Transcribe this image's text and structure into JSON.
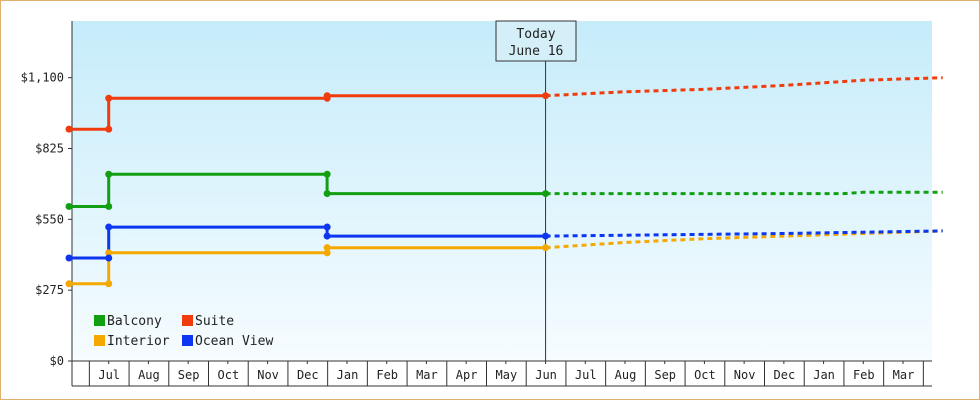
{
  "chart_data": {
    "type": "line",
    "ylim": [
      0,
      1320
    ],
    "y_ticks": [
      0,
      275,
      550,
      825,
      1100
    ],
    "y_tick_labels": [
      "$0",
      "$275",
      "$550",
      "$825",
      "$1,100"
    ],
    "x_tick_labels": [
      "Jul",
      "Aug",
      "Sep",
      "Oct",
      "Nov",
      "Dec",
      "Jan",
      "Feb",
      "Mar",
      "Apr",
      "May",
      "Jun",
      "Jul",
      "Aug",
      "Sep",
      "Oct",
      "Nov",
      "Dec",
      "Jan",
      "Feb",
      "Mar"
    ],
    "x_range_months": [
      0,
      22
    ],
    "today": {
      "line1": "Today",
      "line2": "June 16",
      "month": 12
    },
    "legend_placement": "bottom-left",
    "grid": false,
    "series": [
      {
        "name": "Balcony",
        "color": "#12a012",
        "actual": [
          [
            0,
            600
          ],
          [
            1,
            600
          ],
          [
            1,
            725
          ],
          [
            6.5,
            725
          ],
          [
            6.5,
            650
          ],
          [
            12,
            650
          ]
        ],
        "forecast": [
          [
            12,
            650
          ],
          [
            15,
            650
          ],
          [
            17,
            650
          ],
          [
            19.5,
            650
          ],
          [
            20,
            655
          ],
          [
            22,
            655
          ]
        ]
      },
      {
        "name": "Suite",
        "color": "#f03c0c",
        "actual": [
          [
            0,
            900
          ],
          [
            1,
            900
          ],
          [
            1,
            1020
          ],
          [
            6.5,
            1020
          ],
          [
            6.5,
            1030
          ],
          [
            12,
            1030
          ]
        ],
        "forecast": [
          [
            12,
            1030
          ],
          [
            14,
            1045
          ],
          [
            16,
            1055
          ],
          [
            18,
            1070
          ],
          [
            20,
            1090
          ],
          [
            22,
            1100
          ]
        ]
      },
      {
        "name": "Interior",
        "color": "#f5a800",
        "actual": [
          [
            0,
            300
          ],
          [
            1,
            300
          ],
          [
            1,
            420
          ],
          [
            6.5,
            420
          ],
          [
            6.5,
            440
          ],
          [
            12,
            440
          ]
        ],
        "forecast": [
          [
            12,
            440
          ],
          [
            14,
            460
          ],
          [
            16,
            475
          ],
          [
            18,
            485
          ],
          [
            20,
            495
          ],
          [
            22,
            505
          ]
        ]
      },
      {
        "name": "Ocean View",
        "color": "#0c36f0",
        "actual": [
          [
            0,
            400
          ],
          [
            1,
            400
          ],
          [
            1,
            520
          ],
          [
            6.5,
            520
          ],
          [
            6.5,
            485
          ],
          [
            12,
            485
          ]
        ],
        "forecast": [
          [
            12,
            485
          ],
          [
            15,
            490
          ],
          [
            18,
            495
          ],
          [
            20,
            500
          ],
          [
            22,
            505
          ]
        ]
      }
    ],
    "markers": {
      "Balcony": [
        [
          0,
          600
        ],
        [
          1,
          600
        ],
        [
          1,
          725
        ],
        [
          6.5,
          725
        ],
        [
          6.5,
          650
        ],
        [
          12,
          650
        ]
      ],
      "Suite": [
        [
          0,
          900
        ],
        [
          1,
          900
        ],
        [
          1,
          1020
        ],
        [
          6.5,
          1020
        ],
        [
          6.5,
          1030
        ],
        [
          12,
          1030
        ]
      ],
      "Interior": [
        [
          0,
          300
        ],
        [
          1,
          300
        ],
        [
          1,
          420
        ],
        [
          6.5,
          420
        ],
        [
          6.5,
          440
        ],
        [
          12,
          440
        ]
      ],
      "Ocean View": [
        [
          0,
          400
        ],
        [
          1,
          400
        ],
        [
          1,
          520
        ],
        [
          6.5,
          520
        ],
        [
          6.5,
          485
        ],
        [
          12,
          485
        ]
      ]
    }
  }
}
